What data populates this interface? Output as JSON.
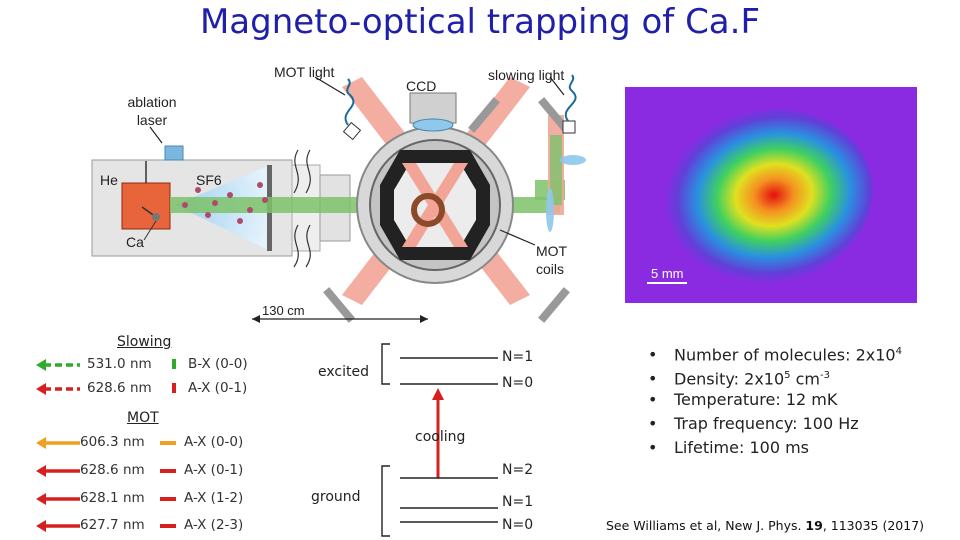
{
  "title": "Magneto-optical trapping of Ca.F",
  "apparatus": {
    "mot_light": "MOT light",
    "ccd": "CCD",
    "slowing_light": "slowing light",
    "ablation_laser": "ablation laser",
    "he": "He",
    "sf6": "SF6",
    "ca": "Ca",
    "mot_coils": "MOT coils",
    "distance": "130 cm",
    "scale_bar": "5 mm"
  },
  "slowing": {
    "heading": "Slowing",
    "lines": [
      {
        "wavelength": "531.0 nm",
        "transition": "B-X (0-0)",
        "color": "#2eaa2e"
      },
      {
        "wavelength": "628.6 nm",
        "transition": "A-X (0-1)",
        "color": "#d62020"
      }
    ]
  },
  "mot": {
    "heading": "MOT",
    "lines": [
      {
        "wavelength": "606.3 nm",
        "transition": "A-X (0-0)",
        "color": "#f0a020"
      },
      {
        "wavelength": "628.6 nm",
        "transition": "A-X (0-1)",
        "color": "#d62020"
      },
      {
        "wavelength": "628.1 nm",
        "transition": "A-X (1-2)",
        "color": "#d62020"
      },
      {
        "wavelength": "627.7 nm",
        "transition": "A-X (2-3)",
        "color": "#d62020"
      }
    ]
  },
  "levels": {
    "excited": "excited",
    "ground": "ground",
    "cooling": "cooling",
    "n1_top": "N=1",
    "n0_top": "N=0",
    "n2": "N=2",
    "n1_bottom": "N=1",
    "n0_bottom": "N=0"
  },
  "stats": [
    {
      "label": "Number of molecules: 2x10",
      "sup": "4",
      "tail": ""
    },
    {
      "label": "Density: 2x10",
      "sup": "5",
      "tail": " cm",
      "sup2": "-3"
    },
    {
      "label": "Temperature: 12 m",
      "sup": "",
      "tail": "K"
    },
    {
      "label": "Trap frequency: 100 Hz",
      "sup": "",
      "tail": ""
    },
    {
      "label": "Lifetime: 100 ms",
      "sup": "",
      "tail": ""
    }
  ],
  "reference": {
    "prefix": "See Williams et al, New J. Phys. ",
    "volume": "19",
    "suffix": ", 113035 (2017)"
  }
}
